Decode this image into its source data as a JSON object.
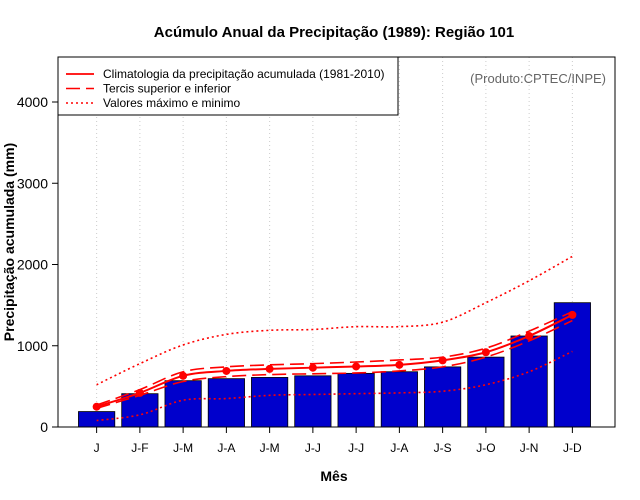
{
  "chart_data": {
    "type": "bar",
    "title": "Acúmulo Anual da Precipitação (1989): Região 101",
    "credit": "(Produto:CPTEC/INPE)",
    "xlabel": "Mês",
    "ylabel": "Precipitação acumulada (mm)",
    "ylim": [
      0,
      4500
    ],
    "yticks": [
      0,
      1000,
      2000,
      3000,
      4000
    ],
    "grid": "vertical dotted",
    "legend_position": "top-left",
    "categories": [
      "J",
      "J-F",
      "J-M",
      "J-A",
      "J-M",
      "J-J",
      "J-J",
      "J-A",
      "J-S",
      "J-O",
      "J-N",
      "J-D"
    ],
    "values": [
      190,
      410,
      570,
      595,
      610,
      630,
      660,
      680,
      740,
      860,
      1120,
      1530
    ],
    "series": [
      {
        "name": "Climatologia da precipitação acumulada (1981-2010)",
        "style": "solid",
        "markers": true,
        "values": [
          250,
          420,
          630,
          690,
          715,
          730,
          745,
          765,
          820,
          920,
          1120,
          1380
        ]
      },
      {
        "name": "Tercis superior e inferior",
        "style": "dashed",
        "role": "upper",
        "values": [
          270,
          460,
          680,
          740,
          765,
          780,
          800,
          825,
          860,
          970,
          1180,
          1420
        ]
      },
      {
        "name": "Tercis superior e inferior (inferior)",
        "style": "dashed",
        "role": "lower",
        "values": [
          230,
          390,
          560,
          620,
          645,
          655,
          665,
          690,
          740,
          860,
          1060,
          1310
        ]
      },
      {
        "name": "Valores máximo e mínimo",
        "style": "dotted",
        "role": "max",
        "values": [
          520,
          780,
          1010,
          1140,
          1190,
          1200,
          1235,
          1235,
          1290,
          1530,
          1800,
          2100
        ]
      },
      {
        "name": "Valores máximo e mínimo (mínimo)",
        "style": "dotted",
        "role": "min",
        "values": [
          80,
          150,
          330,
          350,
          390,
          400,
          410,
          420,
          440,
          520,
          680,
          930
        ]
      }
    ],
    "legend": [
      {
        "label": "Climatologia da precipitação acumulada (1981-2010)",
        "style": "solid"
      },
      {
        "label": "Tercis superior e inferior",
        "style": "dashed"
      },
      {
        "label": "Valores máximo e minimo",
        "style": "dotted"
      }
    ],
    "colors": {
      "bar": "#0000cc",
      "line": "#ff0000",
      "grid": "#cccccc",
      "axis": "#000000"
    }
  }
}
